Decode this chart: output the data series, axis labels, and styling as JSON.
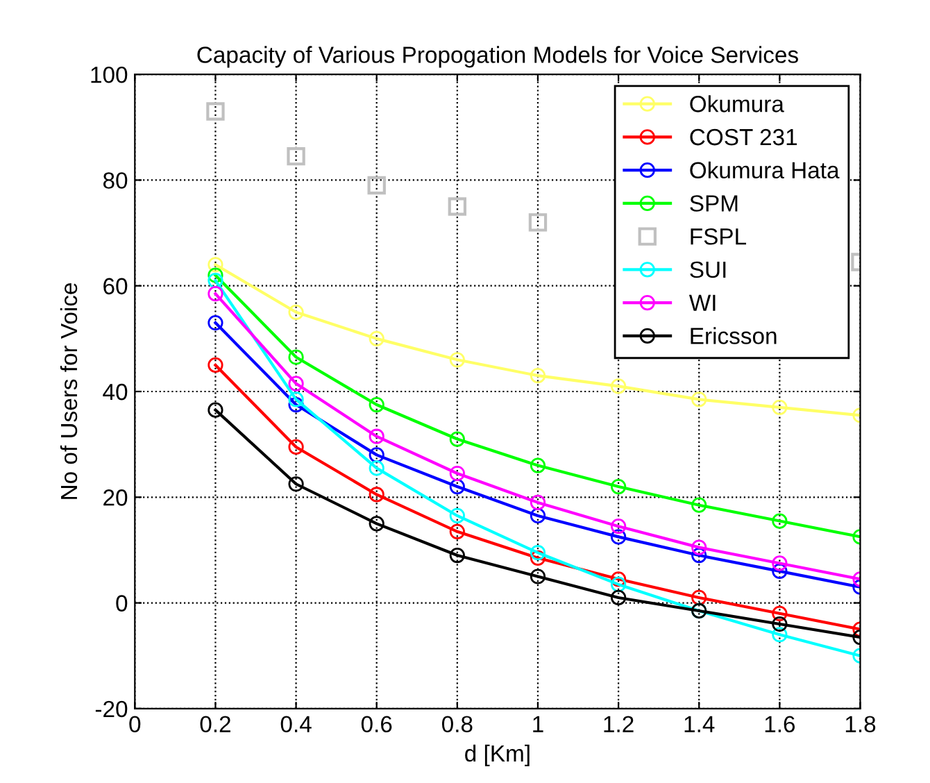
{
  "chart_data": {
    "type": "line",
    "title": "Capacity of Various Propogation Models for Voice Services",
    "xlabel": "d [Km]",
    "ylabel": "No of Users for Voice",
    "x": [
      0.2,
      0.4,
      0.6,
      0.8,
      1.0,
      1.2,
      1.4,
      1.6,
      1.8
    ],
    "xlim": [
      0,
      1.8
    ],
    "xticks": [
      0,
      0.2,
      0.4,
      0.6,
      0.8,
      1,
      1.2,
      1.4,
      1.6,
      1.8
    ],
    "ylim": [
      -20,
      100
    ],
    "yticks": [
      -20,
      0,
      20,
      40,
      60,
      80,
      100
    ],
    "grid": true,
    "legend": "top right",
    "marker": "circle",
    "line_style": "solid",
    "series": [
      {
        "name": "Okumura",
        "color": "#ffff66",
        "values": [
          64,
          55,
          50,
          46,
          43,
          41,
          38.5,
          37,
          35.5
        ]
      },
      {
        "name": "COST 231",
        "color": "#ff0000",
        "values": [
          45,
          29.5,
          20.5,
          13.5,
          8.5,
          4.5,
          1,
          -2,
          -5
        ]
      },
      {
        "name": "Okumura Hata",
        "color": "#0000ff",
        "values": [
          53,
          37.5,
          28,
          22,
          16.5,
          12.5,
          9,
          6,
          3
        ]
      },
      {
        "name": "SPM",
        "color": "#00ff00",
        "values": [
          62,
          46.5,
          37.5,
          31,
          26,
          22,
          18.5,
          15.5,
          12.5
        ]
      },
      {
        "name": "FSPL",
        "color": "#c0c0c0",
        "type": "scatter",
        "marker": "square",
        "values": [
          93,
          84.5,
          79,
          75,
          72,
          null,
          null,
          null,
          64.5
        ]
      },
      {
        "name": "SUI",
        "color": "#00ffff",
        "values": [
          61,
          38.5,
          25.5,
          16.5,
          9.5,
          3.5,
          -1.5,
          -6,
          -10
        ]
      },
      {
        "name": "WI",
        "color": "#ff00ff",
        "values": [
          58.5,
          41.5,
          31.5,
          24.5,
          19,
          14.5,
          10.5,
          7.5,
          4.5
        ]
      },
      {
        "name": "Ericsson",
        "color": "#000000",
        "values": [
          36.5,
          22.5,
          15,
          9,
          5,
          1,
          -1.5,
          -4,
          -6.5
        ]
      }
    ]
  }
}
